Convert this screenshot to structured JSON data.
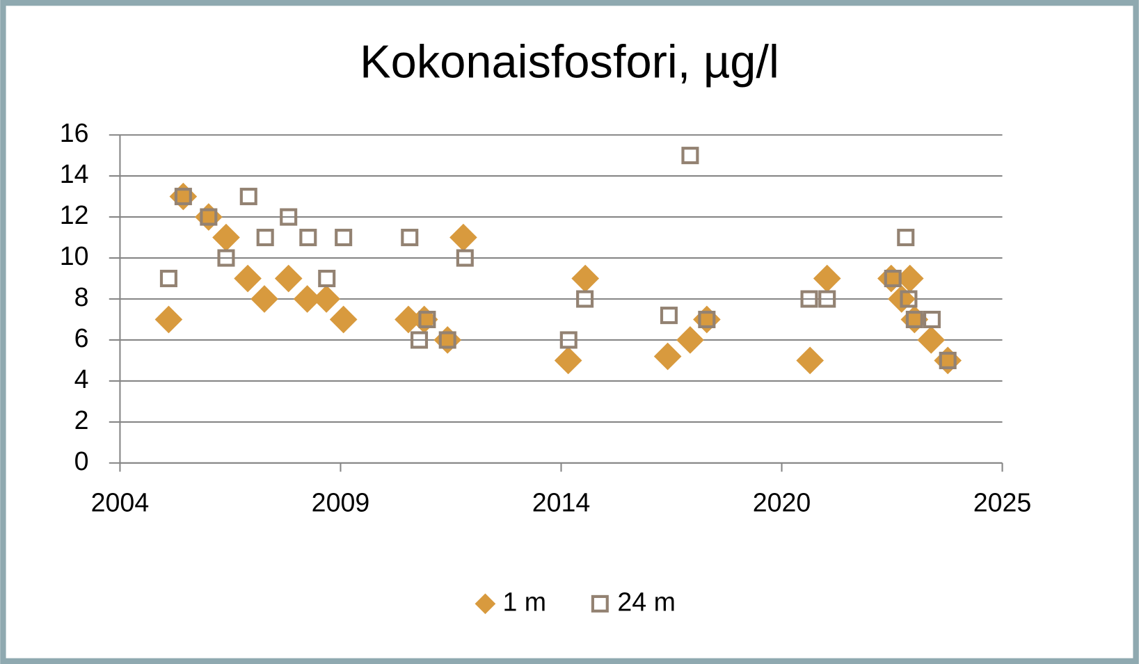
{
  "chart_data": {
    "type": "scatter",
    "title": "Kokonaisfosfori, µg/l",
    "xlim": [
      2004.2,
      2025.4
    ],
    "xticks": [
      {
        "value": 2004.2,
        "label": "2004"
      },
      {
        "value": 2009.5,
        "label": "2009"
      },
      {
        "value": 2014.8,
        "label": "2014"
      },
      {
        "value": 2020.1,
        "label": "2020"
      },
      {
        "value": 2025.4,
        "label": "2025"
      }
    ],
    "ylim": [
      0,
      16
    ],
    "yticks": [
      0,
      2,
      4,
      6,
      8,
      10,
      12,
      14,
      16
    ],
    "grid": true,
    "legend": "bottom",
    "series": [
      {
        "name": "1 m",
        "color": "#d89a3e",
        "marker": "diamond",
        "x": [
          2005.37,
          2005.72,
          2006.33,
          2006.75,
          2007.27,
          2007.67,
          2008.25,
          2008.7,
          2009.16,
          2009.57,
          2011.13,
          2011.51,
          2012.07,
          2012.45,
          2014.97,
          2015.38,
          2017.36,
          2017.9,
          2018.3,
          2020.78,
          2021.19,
          2022.73,
          2022.98,
          2023.18,
          2023.29,
          2023.69,
          2024.09
        ],
        "values": [
          7,
          13,
          12,
          11,
          9,
          8,
          9,
          8,
          8,
          7,
          7,
          7,
          6,
          11,
          5,
          9,
          5.2,
          6,
          7,
          5,
          9,
          9,
          8,
          9,
          7,
          6,
          5
        ]
      },
      {
        "name": "24 m",
        "color": "#938272",
        "marker": "square",
        "x": [
          2005.37,
          2005.72,
          2006.33,
          2006.75,
          2007.29,
          2007.69,
          2008.25,
          2008.72,
          2009.17,
          2009.57,
          2011.16,
          2011.39,
          2011.58,
          2012.07,
          2012.49,
          2014.98,
          2015.37,
          2017.39,
          2017.9,
          2018.3,
          2020.76,
          2021.19,
          2022.77,
          2023.08,
          2023.15,
          2023.29,
          2023.71,
          2024.09
        ],
        "values": [
          9,
          13,
          12,
          10,
          13,
          11,
          12,
          11,
          9,
          11,
          11,
          6,
          7,
          6,
          10,
          6,
          8,
          7.2,
          15,
          7,
          8,
          8,
          9,
          11,
          8,
          7,
          7,
          5
        ]
      }
    ]
  }
}
